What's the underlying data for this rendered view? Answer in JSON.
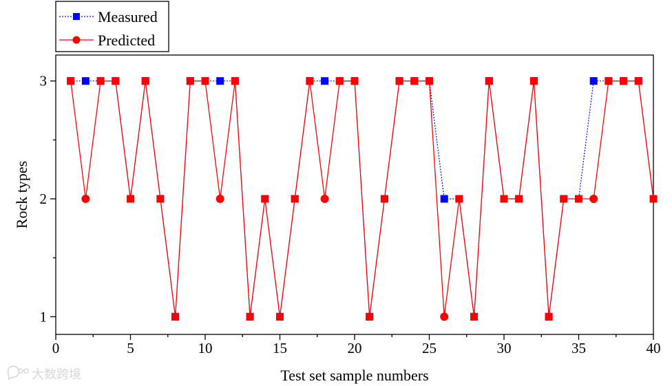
{
  "chart_data": {
    "type": "line",
    "title": "",
    "xlabel": "Test set sample numbers",
    "ylabel": "Rock types",
    "xlim": [
      0,
      40
    ],
    "ylim": [
      0.85,
      3.22
    ],
    "xticks": [
      0,
      5,
      10,
      15,
      20,
      25,
      30,
      35,
      40
    ],
    "yticks": [
      1,
      2,
      3
    ],
    "grid": false,
    "legend_position": "top-left outside",
    "x": [
      1,
      2,
      3,
      4,
      5,
      6,
      7,
      8,
      9,
      10,
      11,
      12,
      13,
      14,
      15,
      16,
      17,
      18,
      19,
      20,
      21,
      22,
      23,
      24,
      25,
      26,
      27,
      28,
      29,
      30,
      31,
      32,
      33,
      34,
      35,
      36,
      37,
      38,
      39,
      40
    ],
    "series": [
      {
        "name": "Measured",
        "color": "#0000ff",
        "line_style": "dotted",
        "marker": "square",
        "values": [
          3,
          3,
          3,
          3,
          2,
          3,
          2,
          1,
          3,
          3,
          3,
          3,
          1,
          2,
          1,
          2,
          3,
          3,
          3,
          3,
          1,
          2,
          3,
          3,
          3,
          2,
          2,
          1,
          3,
          2,
          2,
          3,
          1,
          2,
          2,
          3,
          3,
          3,
          3,
          2
        ]
      },
      {
        "name": "Predicted",
        "color": "#ff0000",
        "line_style": "solid",
        "marker": "circle",
        "values": [
          3,
          2,
          3,
          3,
          2,
          3,
          2,
          1,
          3,
          3,
          2,
          3,
          1,
          2,
          1,
          2,
          3,
          2,
          3,
          3,
          1,
          2,
          3,
          3,
          3,
          1,
          2,
          1,
          3,
          2,
          2,
          3,
          1,
          2,
          2,
          2,
          3,
          3,
          3,
          2
        ]
      }
    ]
  },
  "watermark": {
    "icon": "speech-bubble-logo-icon",
    "text": "大数跨境"
  }
}
